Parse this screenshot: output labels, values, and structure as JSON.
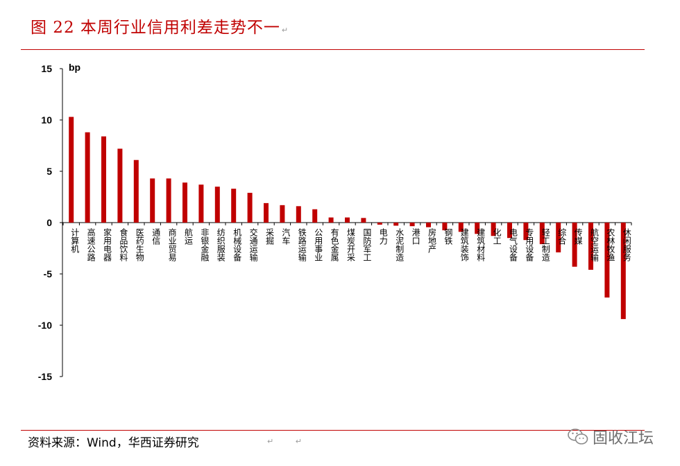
{
  "title": "图 22  本周行业信用利差走势不一",
  "title_mark": "↵",
  "source": "资料来源：Wind，华西证券研究",
  "source_marks": "↵ ↵",
  "watermark": "固收江坛",
  "chart_data": {
    "type": "bar",
    "unit": "bp",
    "ylim": [
      -15,
      15
    ],
    "yticks": [
      15,
      10,
      5,
      0,
      -5,
      -10,
      -15
    ],
    "bar_color": "#c00000",
    "grid": false,
    "categories": [
      "计算机",
      "高速公路",
      "家用电器",
      "食品饮料",
      "医药生物",
      "通信",
      "商业贸易",
      "航运",
      "非银金融",
      "纺织服装",
      "机械设备",
      "交通运输",
      "采掘",
      "汽车",
      "铁路运输",
      "公用事业",
      "有色金属",
      "煤炭开采",
      "国防军工",
      "电力",
      "水泥制造",
      "港口",
      "房地产",
      "钢铁",
      "建筑装饰",
      "建筑材料",
      "化工",
      "电气设备",
      "专用设备",
      "轻工制造",
      "综合",
      "传媒",
      "航空运输",
      "农林牧渔",
      "休闲服务"
    ],
    "values": [
      10.3,
      8.8,
      8.4,
      7.2,
      6.1,
      4.3,
      4.3,
      3.9,
      3.7,
      3.5,
      3.3,
      2.9,
      1.9,
      1.7,
      1.6,
      1.3,
      0.5,
      0.5,
      0.45,
      -0.2,
      -0.3,
      -0.35,
      -0.45,
      -0.75,
      -0.9,
      -1.1,
      -1.3,
      -1.5,
      -1.7,
      -2.1,
      -2.9,
      -4.3,
      -4.6,
      -7.3,
      -9.4
    ]
  }
}
